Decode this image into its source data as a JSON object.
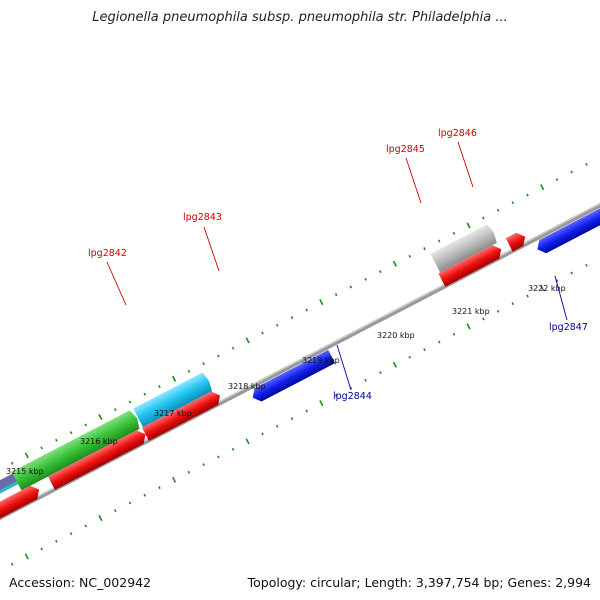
{
  "title": "Legionella pneumophila subsp. pneumophila str. Philadelphia ...",
  "accession_label": "Accession: NC_002942",
  "topology_label": "Topology: circular; Length: 3,397,754 bp; Genes: 2,994",
  "colors": {
    "minus_strand": "#0a14e6",
    "plus_strand": "#ee1111",
    "label_minus": "#000099",
    "label_plus": "#cc0000",
    "tick": "#1f8a1f",
    "backbone": "#888888"
  },
  "tick_labels": [
    "3215 kbp",
    "3216 kbp",
    "3217 kbp",
    "3218 kbp",
    "3219 kbp",
    "3220 kbp",
    "3221 kbp",
    "3222 kbp"
  ],
  "genes": [
    {
      "label": "lpg2842",
      "strand": "plus"
    },
    {
      "label": "lpg2843",
      "strand": "plus"
    },
    {
      "label": "lpg2844",
      "strand": "minus"
    },
    {
      "label": "lpg2845",
      "strand": "plus"
    },
    {
      "label": "lpg2846",
      "strand": "plus"
    },
    {
      "label": "lpg2847",
      "strand": "minus"
    }
  ]
}
